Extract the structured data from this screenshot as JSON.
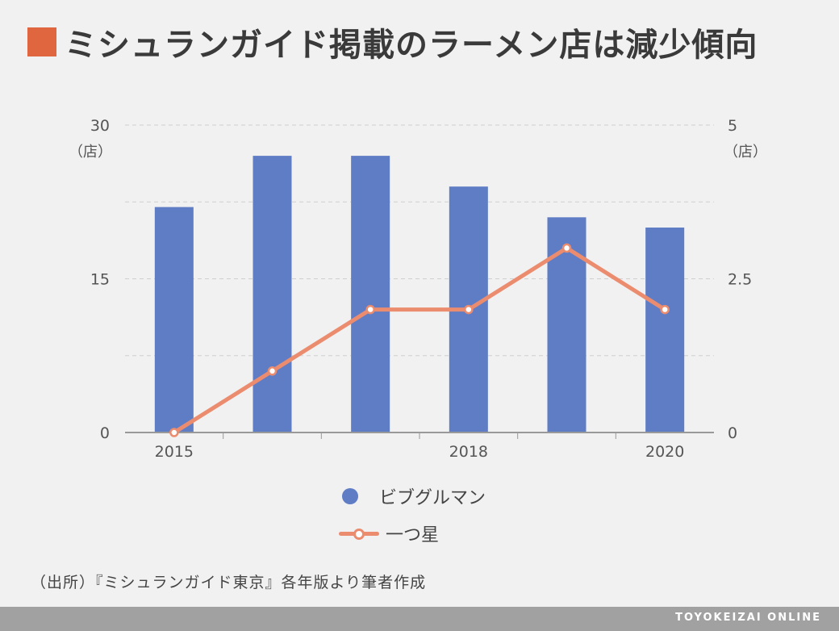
{
  "title": "ミシュランガイド掲載のラーメン店は減少傾向",
  "accent_color": "#e0663f",
  "chart_data": {
    "type": "bar+line",
    "x": [
      2015,
      2016,
      2017,
      2018,
      2019,
      2020
    ],
    "x_tick_labels": [
      "2015",
      "",
      "",
      "2018",
      "",
      "2020"
    ],
    "left_axis": {
      "ticks": [
        "0",
        "15",
        "30"
      ],
      "range": [
        0,
        30
      ],
      "unit": "（店）"
    },
    "right_axis": {
      "ticks": [
        "0",
        "2.5",
        "5"
      ],
      "range": [
        0,
        5
      ],
      "unit": "（店）"
    },
    "grid": true,
    "series": [
      {
        "name": "ビブグルマン",
        "type": "bar",
        "axis": "left",
        "color": "#5f7dc5",
        "values": [
          22,
          27,
          27,
          24,
          21,
          20
        ]
      },
      {
        "name": "一つ星",
        "type": "line",
        "axis": "right",
        "color": "#ec8c6f",
        "values": [
          0,
          1,
          2,
          2,
          3,
          2
        ]
      }
    ],
    "legend_placement": "bottom"
  },
  "source": "（出所）『ミシュランガイド東京』各年版より筆者作成",
  "footer": "TOYOKEIZAI ONLINE"
}
